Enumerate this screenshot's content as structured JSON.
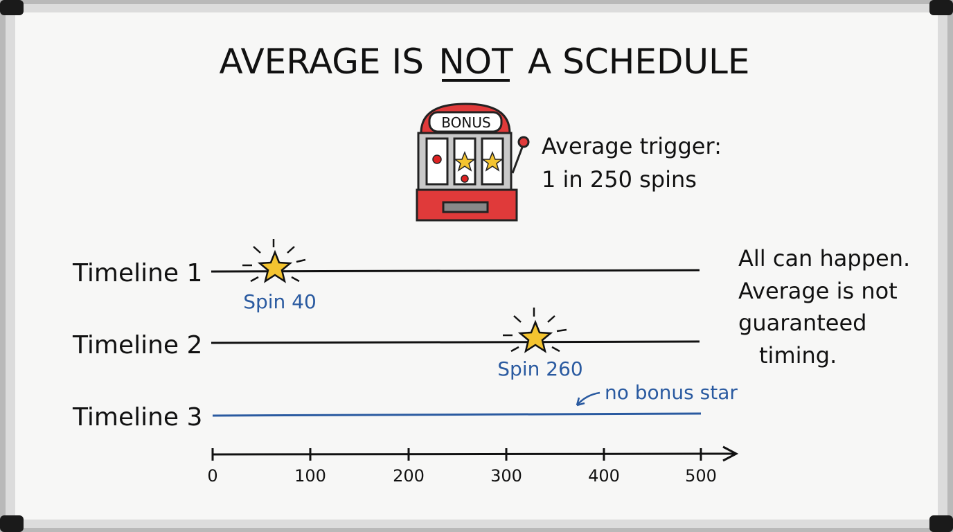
{
  "title": {
    "before": "AVERAGE IS",
    "emphasis": "NOT",
    "after": "A SCHEDULE"
  },
  "machine": {
    "label": "BONUS"
  },
  "trigger_note": [
    "Average trigger:",
    "1 in 250 spins"
  ],
  "timelines": [
    {
      "label": "Timeline 1",
      "event": "Spin 40"
    },
    {
      "label": "Timeline 2",
      "event": "Spin 260"
    },
    {
      "label": "Timeline 3",
      "note": "no bonus star"
    }
  ],
  "axis_ticks": [
    "0",
    "100",
    "200",
    "300",
    "400",
    "500"
  ],
  "side_note": [
    "All can happen.",
    "Average is not",
    "guaranteed",
    "timing."
  ]
}
